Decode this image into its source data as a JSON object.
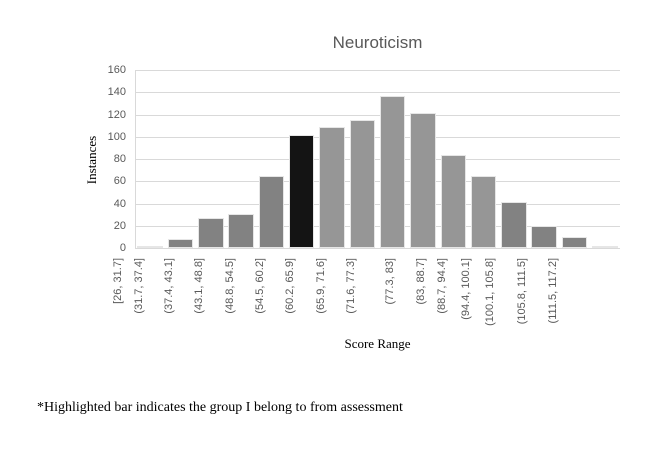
{
  "chart_data": {
    "type": "bar",
    "title": "Neuroticism",
    "xlabel": "Score Range",
    "ylabel": "Instances",
    "ylim": [
      0,
      160
    ],
    "yticks": [
      0,
      20,
      40,
      60,
      80,
      100,
      120,
      140,
      160
    ],
    "grid": true,
    "legend": null,
    "categories": [
      "[26, 31.7]",
      "(31.7, 37.4]",
      "(37.4, 43.1]",
      "(43.1, 48.8]",
      "(48.8, 54.5]",
      "(54.5, 60.2]",
      "(60.2, 65.9]",
      "(65.9, 71.6]",
      "(71.6, 77.3]",
      "(77.3, 83]",
      "(83, 88.7]",
      "(88.7, 94.4]",
      "(94.4, 100.1]",
      "(100.1, 105.8]",
      "(105.8, 111.5]",
      "(111.5, 117.2]"
    ],
    "values": [
      2,
      8,
      27,
      31,
      65,
      102,
      109,
      115,
      137,
      121,
      84,
      65,
      41,
      20,
      10,
      2
    ],
    "highlighted_index": 5,
    "highlighted_category": "(54.5, 60.2]",
    "colors": {
      "bar_dark_gray": "#828282",
      "bar_light_gray": "#969696",
      "highlight": "#141414",
      "gridline": "#d9d9d9",
      "tick_text": "#595959"
    }
  },
  "footnote": "*Highlighted bar indicates the group I belong to from assessment"
}
